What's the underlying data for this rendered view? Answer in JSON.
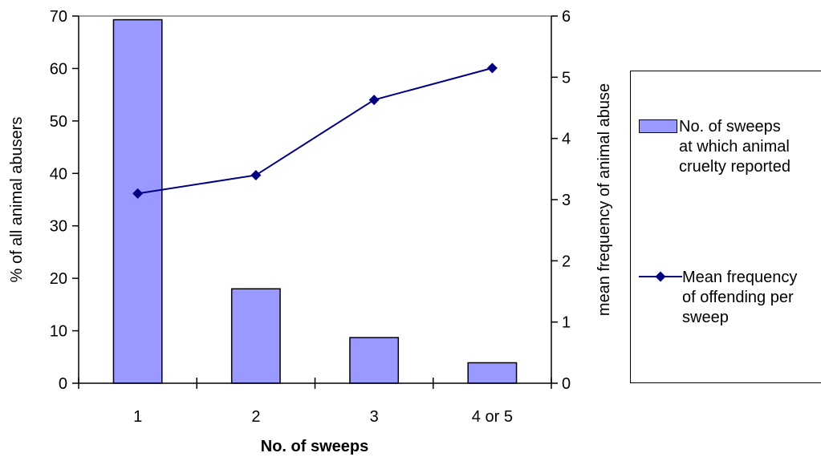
{
  "chart_data": {
    "type": "bar+line",
    "categories": [
      "1",
      "2",
      "3",
      "4 or 5"
    ],
    "xlabel": "No. of sweeps",
    "ylabel_left": "% of all animal abusers",
    "ylabel_right": "mean frequency of animal abuse",
    "ylim_left": [
      0,
      70
    ],
    "yticks_left": [
      0,
      10,
      20,
      30,
      40,
      50,
      60,
      70
    ],
    "ylim_right": [
      0,
      6
    ],
    "yticks_right": [
      0,
      1,
      2,
      3,
      4,
      5,
      6
    ],
    "grid": false,
    "legend_position": "right",
    "series": [
      {
        "name": "No. of sweeps at which animal cruelty reported",
        "type": "bar",
        "axis": "left",
        "values": [
          69.3,
          18,
          8.7,
          3.9
        ],
        "color": "#9999ff"
      },
      {
        "name": "Mean frequency of offending per sweep",
        "type": "line",
        "axis": "right",
        "marker": "diamond",
        "values": [
          3.1,
          3.4,
          4.63,
          5.15
        ],
        "color": "#000080"
      }
    ]
  },
  "legend": {
    "bar_label": "No. of sweeps\nat which animal\ncruelty reported",
    "line_label": "Mean frequency\nof offending per\nsweep"
  }
}
